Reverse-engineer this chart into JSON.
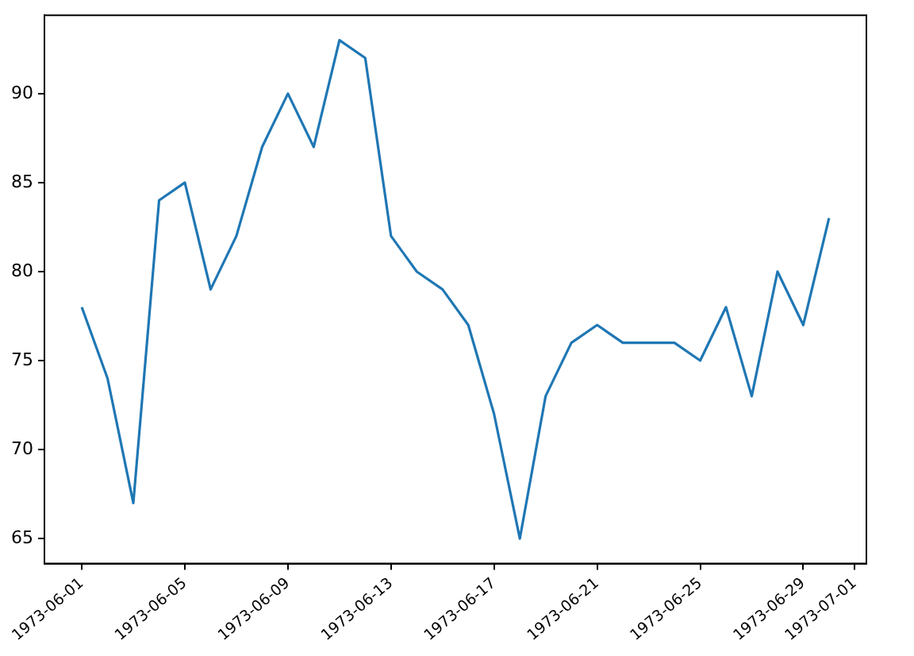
{
  "chart_data": {
    "type": "line",
    "x": [
      "1973-06-01",
      "1973-06-02",
      "1973-06-03",
      "1973-06-04",
      "1973-06-05",
      "1973-06-06",
      "1973-06-07",
      "1973-06-08",
      "1973-06-09",
      "1973-06-10",
      "1973-06-11",
      "1973-06-12",
      "1973-06-13",
      "1973-06-14",
      "1973-06-15",
      "1973-06-16",
      "1973-06-17",
      "1973-06-18",
      "1973-06-19",
      "1973-06-20",
      "1973-06-21",
      "1973-06-22",
      "1973-06-23",
      "1973-06-24",
      "1973-06-25",
      "1973-06-26",
      "1973-06-27",
      "1973-06-28",
      "1973-06-29",
      "1973-06-30"
    ],
    "series": [
      {
        "color": "#1f77b4",
        "values": [
          78,
          74,
          67,
          84,
          85,
          79,
          82,
          87,
          90,
          87,
          93,
          92,
          82,
          80,
          79,
          77,
          72,
          65,
          73,
          76,
          77,
          76,
          76,
          76,
          75,
          78,
          73,
          80,
          77,
          83
        ]
      }
    ],
    "xlim": [
      "1973-05-30T13:12",
      "1973-07-01T10:48"
    ],
    "xticks": [
      "1973-06-01",
      "1973-06-05",
      "1973-06-09",
      "1973-06-13",
      "1973-06-17",
      "1973-06-21",
      "1973-06-25",
      "1973-06-29",
      "1973-07-01"
    ],
    "ylim": [
      63.6,
      94.4
    ],
    "yticks": [
      65,
      70,
      75,
      80,
      85,
      90
    ],
    "grid": false,
    "legend": false,
    "marker": "none",
    "line_style": "solid"
  }
}
